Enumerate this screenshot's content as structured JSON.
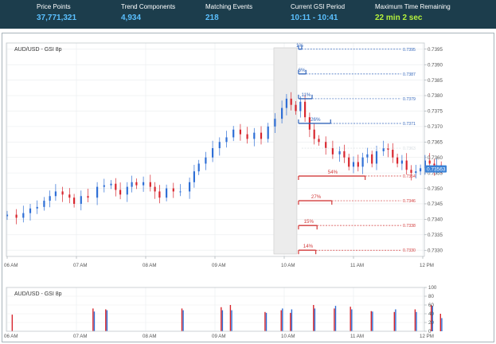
{
  "topbar": {
    "stats": [
      {
        "label": "Price Points",
        "value": "37,771,321",
        "color": "#5bc0ff"
      },
      {
        "label": "Trend Components",
        "value": "4,934",
        "color": "#5bc0ff"
      },
      {
        "label": "Matching Events",
        "value": "218",
        "color": "#5bc0ff"
      },
      {
        "label": "Current GSI Period",
        "value": "10:11 - 10:41",
        "color": "#5bc0ff"
      },
      {
        "label": "Maximum Time Remaining",
        "value": "22 min 2 sec",
        "color": "#b5f23c"
      }
    ]
  },
  "chart_data": [
    {
      "type": "candlestick",
      "title": "AUD/USD - GSI 8p",
      "x_ticks": [
        "06 AM",
        "07 AM",
        "08 AM",
        "09 AM",
        "10 AM",
        "11 AM",
        "12 PM"
      ],
      "y_ticks": [
        "0.7395",
        "0.7390",
        "0.7385",
        "0.7380",
        "0.7375",
        "0.7370",
        "0.7365",
        "0.7360",
        "0.7355",
        "0.7350",
        "0.7345",
        "0.7340",
        "0.7335",
        "0.7330"
      ],
      "ylim": [
        0.7328,
        0.7397
      ],
      "current_price": "0.73563",
      "colors": {
        "up": "#2f6fd6",
        "down": "#d8262e",
        "neutral": "#d6dce0"
      },
      "gsi_window": {
        "start": "09:51",
        "end": "10:11"
      },
      "gsi_levels": [
        {
          "direction": "up",
          "percent": "1%",
          "price": "0.7395"
        },
        {
          "direction": "up",
          "percent": "6%",
          "price": "0.7387"
        },
        {
          "direction": "up",
          "percent": "11%",
          "price": "0.7379"
        },
        {
          "direction": "up",
          "percent": "26%",
          "price": "0.7371"
        },
        {
          "direction": "neutral",
          "percent": "",
          "price": "0.7363"
        },
        {
          "direction": "down",
          "percent": "54%",
          "price": "0.7354"
        },
        {
          "direction": "down",
          "percent": "27%",
          "price": "0.7346"
        },
        {
          "direction": "down",
          "percent": "15%",
          "price": "0.7338"
        },
        {
          "direction": "down",
          "percent": "14%",
          "price": "0.7330"
        }
      ]
    },
    {
      "type": "bar",
      "title": "AUD/USD - GSI 8p",
      "x_ticks": [
        "06 AM",
        "07 AM",
        "08 AM",
        "09 AM",
        "10 AM",
        "11 AM",
        "12 PM"
      ],
      "y_ticks": [
        "100",
        "80",
        "60",
        "40",
        "20",
        "0"
      ],
      "ylim": [
        0,
        100
      ]
    }
  ]
}
